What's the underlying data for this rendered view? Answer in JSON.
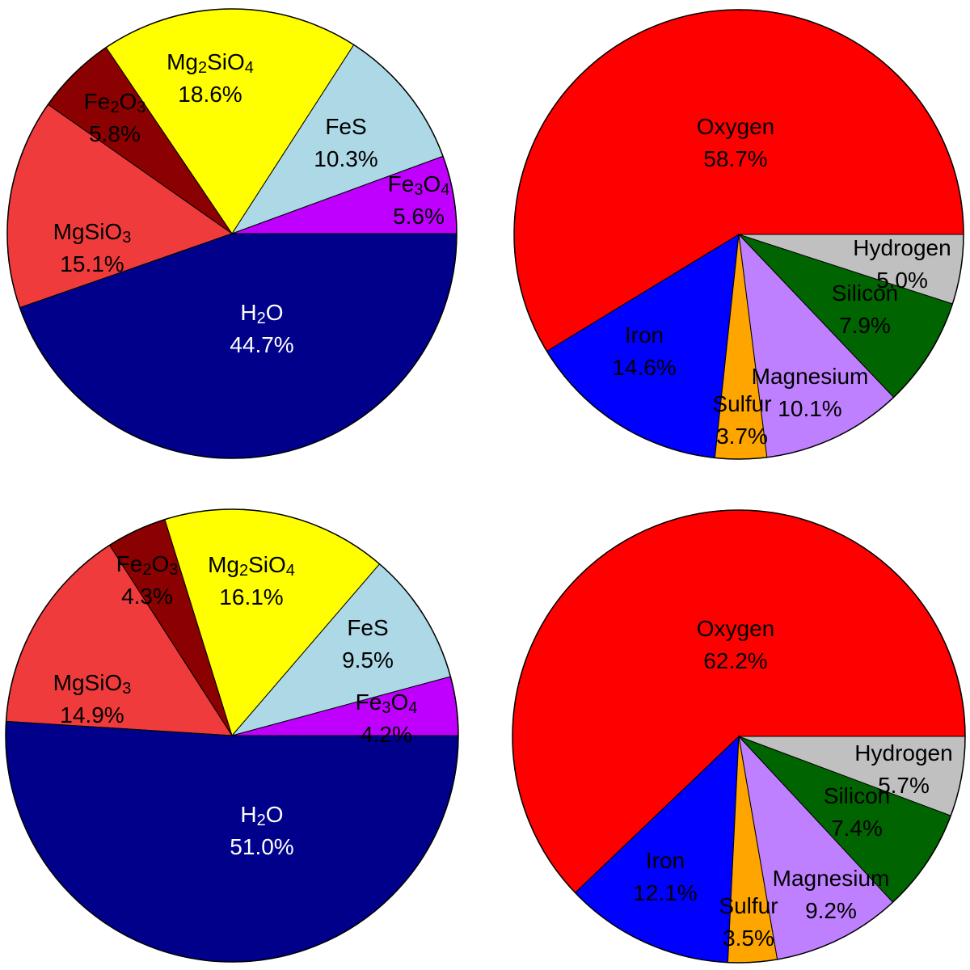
{
  "chart_data": [
    {
      "type": "pie",
      "start_angle_deg": 0,
      "direction": "counterclockwise",
      "slices": [
        {
          "name": "Fe3O4",
          "name_html": "Fe<sub>3</sub>O<sub>4</sub>",
          "value": 5.6,
          "label": "5.6%",
          "color": "#bf00ff",
          "text_color": "#000000"
        },
        {
          "name": "FeS",
          "name_html": "FeS",
          "value": 10.3,
          "label": "10.3%",
          "color": "#add8e6",
          "text_color": "#000000"
        },
        {
          "name": "Mg2SiO4",
          "name_html": "Mg<sub>2</sub>SiO<sub>4</sub>",
          "value": 18.6,
          "label": "18.6%",
          "color": "#ffff00",
          "text_color": "#000000"
        },
        {
          "name": "Fe2O3",
          "name_html": "Fe<sub>2</sub>O<sub>3</sub>",
          "value": 5.8,
          "label": "5.8%",
          "color": "#8b0000",
          "text_color": "#000000"
        },
        {
          "name": "MgSiO3",
          "name_html": "MgSiO<sub>3</sub>",
          "value": 15.1,
          "label": "15.1%",
          "color": "#ef3b3b",
          "text_color": "#000000"
        },
        {
          "name": "H2O",
          "name_html": "H<sub>2</sub>O",
          "value": 44.7,
          "label": "44.7%",
          "color": "#00008b",
          "text_color": "#ffffff"
        }
      ]
    },
    {
      "type": "pie",
      "start_angle_deg": 0,
      "direction": "counterclockwise",
      "slices": [
        {
          "name": "Oxygen",
          "name_html": "Oxygen",
          "value": 58.7,
          "label": "58.7%",
          "color": "#ff0000",
          "text_color": "#000000"
        },
        {
          "name": "Iron",
          "name_html": "Iron",
          "value": 14.6,
          "label": "14.6%",
          "color": "#0000ff",
          "text_color": "#000000"
        },
        {
          "name": "Sulfur",
          "name_html": "Sulfur",
          "value": 3.7,
          "label": "3.7%",
          "color": "#ffa500",
          "text_color": "#000000"
        },
        {
          "name": "Magnesium",
          "name_html": "Magnesium",
          "value": 10.1,
          "label": "10.1%",
          "color": "#bf80ff",
          "text_color": "#000000"
        },
        {
          "name": "Silicon",
          "name_html": "Silicon",
          "value": 7.9,
          "label": "7.9%",
          "color": "#006400",
          "text_color": "#000000"
        },
        {
          "name": "Hydrogen",
          "name_html": "Hydrogen",
          "value": 5.0,
          "label": "5.0%",
          "color": "#c0c0c0",
          "text_color": "#000000"
        }
      ]
    },
    {
      "type": "pie",
      "start_angle_deg": 0,
      "direction": "counterclockwise",
      "slices": [
        {
          "name": "Fe3O4",
          "name_html": "Fe<sub>3</sub>O<sub>4</sub>",
          "value": 4.2,
          "label": "4.2%",
          "color": "#bf00ff",
          "text_color": "#000000"
        },
        {
          "name": "FeS",
          "name_html": "FeS",
          "value": 9.5,
          "label": "9.5%",
          "color": "#add8e6",
          "text_color": "#000000"
        },
        {
          "name": "Mg2SiO4",
          "name_html": "Mg<sub>2</sub>SiO<sub>4</sub>",
          "value": 16.1,
          "label": "16.1%",
          "color": "#ffff00",
          "text_color": "#000000"
        },
        {
          "name": "Fe2O3",
          "name_html": "Fe<sub>2</sub>O<sub>3</sub>",
          "value": 4.3,
          "label": "4.3%",
          "color": "#8b0000",
          "text_color": "#000000"
        },
        {
          "name": "MgSiO3",
          "name_html": "MgSiO<sub>3</sub>",
          "value": 14.9,
          "label": "14.9%",
          "color": "#ef3b3b",
          "text_color": "#000000"
        },
        {
          "name": "H2O",
          "name_html": "H<sub>2</sub>O",
          "value": 51.0,
          "label": "51.0%",
          "color": "#00008b",
          "text_color": "#ffffff"
        }
      ]
    },
    {
      "type": "pie",
      "start_angle_deg": 0,
      "direction": "counterclockwise",
      "slices": [
        {
          "name": "Oxygen",
          "name_html": "Oxygen",
          "value": 62.2,
          "label": "62.2%",
          "color": "#ff0000",
          "text_color": "#000000"
        },
        {
          "name": "Iron",
          "name_html": "Iron",
          "value": 12.1,
          "label": "12.1%",
          "color": "#0000ff",
          "text_color": "#000000"
        },
        {
          "name": "Sulfur",
          "name_html": "Sulfur",
          "value": 3.5,
          "label": "3.5%",
          "color": "#ffa500",
          "text_color": "#000000"
        },
        {
          "name": "Magnesium",
          "name_html": "Magnesium",
          "value": 9.2,
          "label": "9.2%",
          "color": "#bf80ff",
          "text_color": "#000000"
        },
        {
          "name": "Silicon",
          "name_html": "Silicon",
          "value": 7.4,
          "label": "7.4%",
          "color": "#006400",
          "text_color": "#000000"
        },
        {
          "name": "Hydrogen",
          "name_html": "Hydrogen",
          "value": 5.7,
          "label": "5.7%",
          "color": "#c0c0c0",
          "text_color": "#000000"
        }
      ]
    }
  ]
}
